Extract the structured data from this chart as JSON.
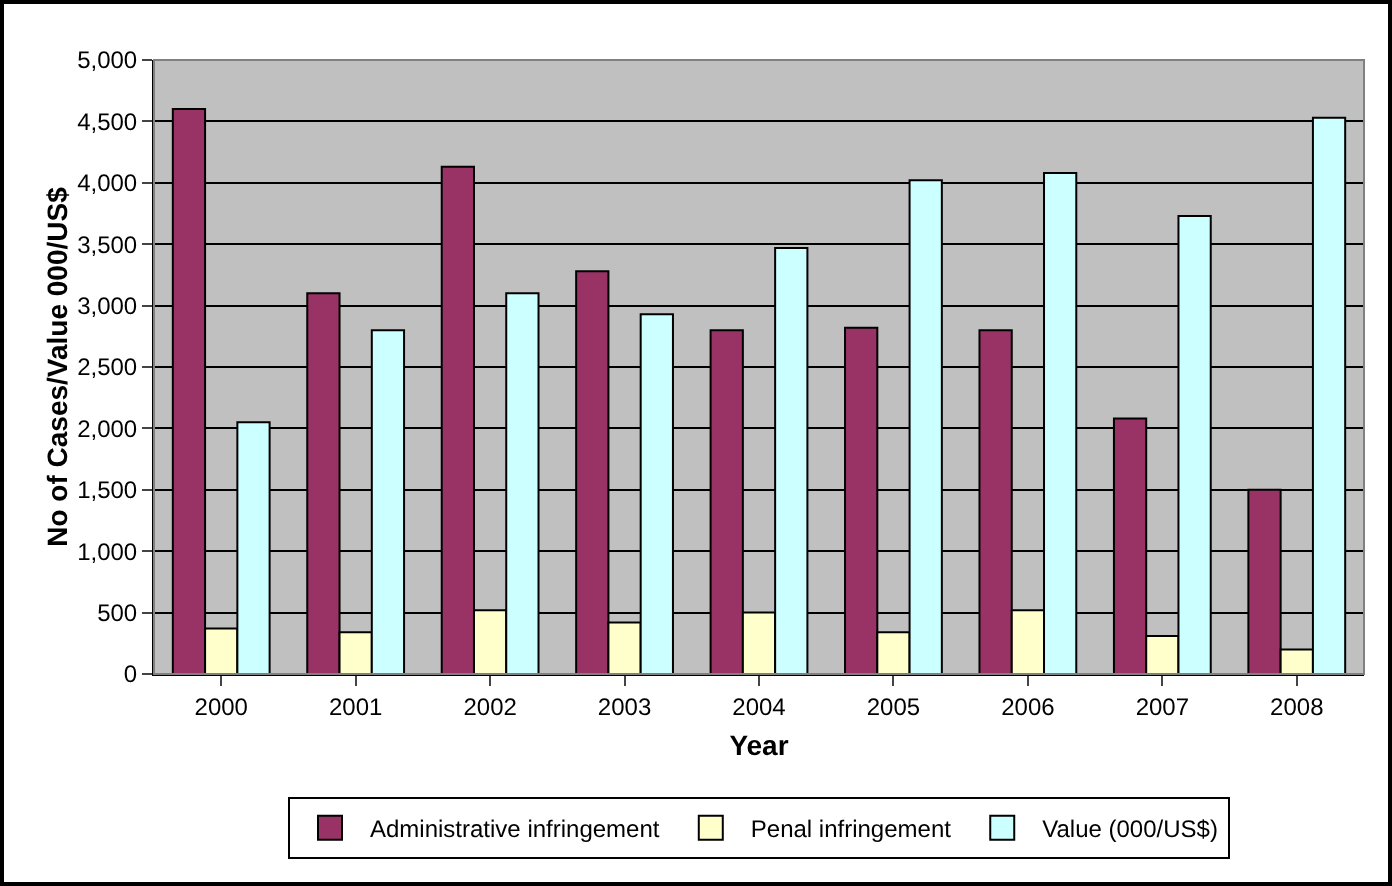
{
  "chart_data": {
    "type": "bar",
    "xlabel": "Year",
    "ylabel": "No of Cases/Value 000/US$",
    "categories": [
      "2000",
      "2001",
      "2002",
      "2003",
      "2004",
      "2005",
      "2006",
      "2007",
      "2008"
    ],
    "series": [
      {
        "name": "Administrative infringement",
        "color": "#993366",
        "values": [
          4600,
          3100,
          4130,
          3280,
          2800,
          2820,
          2800,
          2080,
          1500
        ]
      },
      {
        "name": "Penal infringement",
        "color": "#ffffcc",
        "values": [
          370,
          340,
          520,
          420,
          500,
          340,
          520,
          310,
          200
        ]
      },
      {
        "name": "Value (000/US$)",
        "color": "#ccffff",
        "values": [
          2050,
          2800,
          3100,
          2930,
          3470,
          4020,
          4080,
          3730,
          4530
        ]
      }
    ],
    "ylim": [
      0,
      5000
    ],
    "yticks": [
      {
        "value": 0,
        "label": "0"
      },
      {
        "value": 500,
        "label": "500"
      },
      {
        "value": 1000,
        "label": "1,000"
      },
      {
        "value": 1500,
        "label": "1,500"
      },
      {
        "value": 2000,
        "label": "2,000"
      },
      {
        "value": 2500,
        "label": "2,500"
      },
      {
        "value": 3000,
        "label": "3,000"
      },
      {
        "value": 3500,
        "label": "3,500"
      },
      {
        "value": 4000,
        "label": "4,000"
      },
      {
        "value": 4500,
        "label": "4,500"
      },
      {
        "value": 5000,
        "label": "5,000"
      }
    ],
    "grid": "y",
    "legend": "bottom"
  }
}
